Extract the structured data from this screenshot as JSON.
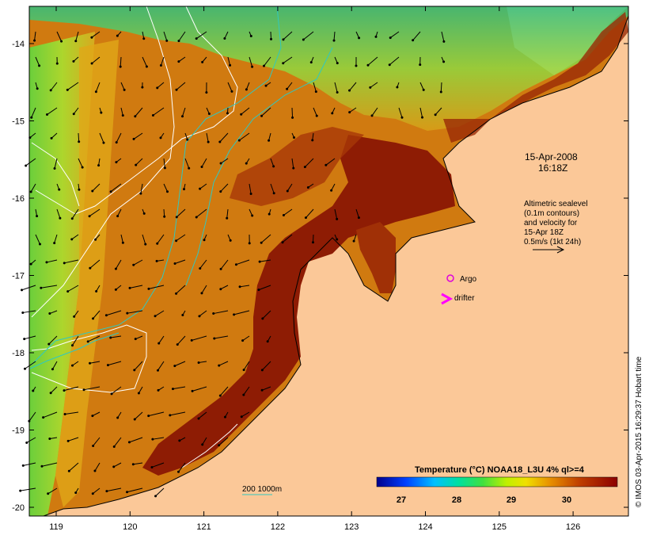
{
  "map": {
    "datetime_date": "15-Apr-2008",
    "datetime_time": "16:18Z",
    "legend_lines": [
      "Altimetric sealevel",
      "(0.1m contours)",
      "and velocity for",
      "15-Apr 18Z",
      "0.5m/s (1kt 24h)"
    ],
    "argo_label": "Argo",
    "drifter_label": "drifter",
    "colorbar_title": "Temperature (°C) NOAA18_L3U 4% ql>=4",
    "colorbar_ticks": [
      "27",
      "28",
      "29",
      "30"
    ],
    "depth_legend": "200  1000m",
    "credit": "© IMOS 03-Apr-2015 16:29:37 Hobart time",
    "lon_ticks": [
      "119",
      "120",
      "121",
      "122",
      "123",
      "124",
      "125",
      "126"
    ],
    "lat_ticks": [
      "-14",
      "-15",
      "-16",
      "-17",
      "-18",
      "-19",
      "-20"
    ],
    "colors": {
      "land": "#fbc898",
      "sst_dark": "#8a1a04",
      "sst_mid": "#c85a08",
      "sst_warm": "#d8860c",
      "sst_yellow": "#e8c020",
      "sst_green": "#8ed838",
      "argo": "#dd00dd",
      "drifter": "#ff00ff",
      "contour_cyan": "#30c8c0"
    }
  }
}
